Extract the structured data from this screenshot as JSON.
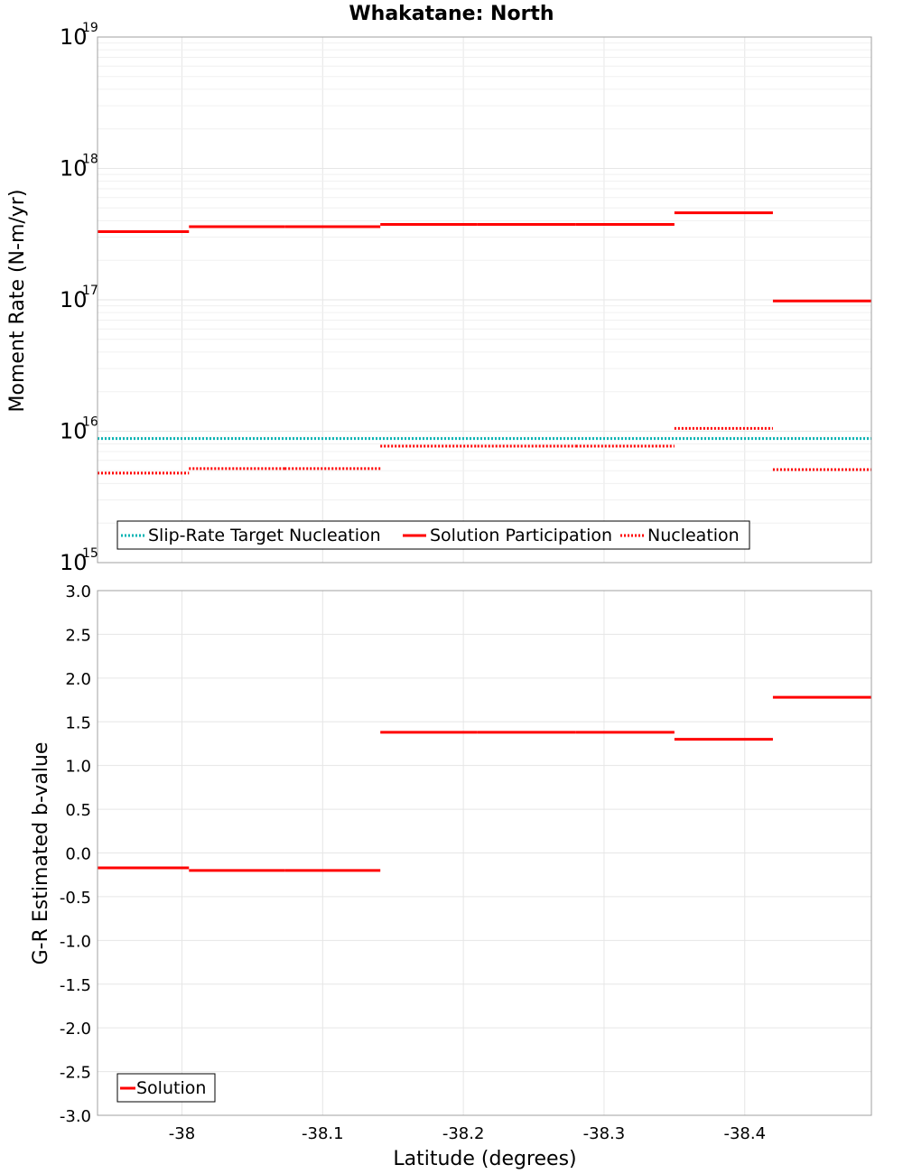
{
  "title": "Whakatane: North",
  "chart_data": [
    {
      "type": "line",
      "step": true,
      "yscale": "log",
      "ylabel": "Moment Rate (N-m/yr)",
      "xlim": [
        -37.94,
        -38.49
      ],
      "ylim": [
        1000000000000000.0,
        1e+19
      ],
      "ytick_base": "10",
      "ytick_exponents": [
        "15",
        "16",
        "17",
        "18",
        "19"
      ],
      "legend_position": "bottom-left",
      "series": [
        {
          "name": "Slip-Rate Target Nucleation",
          "style": "dotted",
          "color": "#00b3b3",
          "segments": [
            [
              -37.94,
              -38.49,
              8800000000000000.0
            ]
          ]
        },
        {
          "name": "Solution Participation",
          "style": "solid",
          "color": "#ff0000",
          "segments": [
            [
              -37.94,
              -38.005,
              3.3e+17
            ],
            [
              -38.005,
              -38.073,
              3.6e+17
            ],
            [
              -38.073,
              -38.141,
              3.6e+17
            ],
            [
              -38.141,
              -38.21,
              3.75e+17
            ],
            [
              -38.21,
              -38.28,
              3.75e+17
            ],
            [
              -38.28,
              -38.35,
              3.75e+17
            ],
            [
              -38.35,
              -38.42,
              4.6e+17
            ],
            [
              -38.42,
              -38.49,
              9.8e+16
            ]
          ]
        },
        {
          "name": "Nucleation",
          "style": "dotted",
          "color": "#ff0000",
          "segments": [
            [
              -37.94,
              -38.005,
              4800000000000000.0
            ],
            [
              -38.005,
              -38.073,
              5200000000000000.0
            ],
            [
              -38.073,
              -38.141,
              5200000000000000.0
            ],
            [
              -38.141,
              -38.21,
              7700000000000000.0
            ],
            [
              -38.21,
              -38.28,
              7700000000000000.0
            ],
            [
              -38.28,
              -38.35,
              7700000000000000.0
            ],
            [
              -38.35,
              -38.42,
              1.05e+16
            ],
            [
              -38.42,
              -38.49,
              5100000000000000.0
            ]
          ]
        }
      ]
    },
    {
      "type": "line",
      "step": true,
      "ylabel": "G-R Estimated b-value",
      "xlabel": "Latitude (degrees)",
      "xlim": [
        -37.94,
        -38.49
      ],
      "ylim": [
        -3.0,
        3.0
      ],
      "xticks": [
        -38,
        -38.1,
        -38.2,
        -38.3,
        -38.4
      ],
      "xtick_labels": [
        "-38",
        "-38.1",
        "-38.2",
        "-38.3",
        "-38.4"
      ],
      "yticks": [
        3.0,
        2.5,
        2.0,
        1.5,
        1.0,
        0.5,
        0.0,
        -0.5,
        -1.0,
        -1.5,
        -2.0,
        -2.5,
        -3.0
      ],
      "ytick_labels": [
        "3.0",
        "2.5",
        "2.0",
        "1.5",
        "1.0",
        "0.5",
        "0.0",
        "-0.5",
        "-1.0",
        "-1.5",
        "-2.0",
        "-2.5",
        "-3.0"
      ],
      "legend_position": "bottom-left",
      "series": [
        {
          "name": "Solution",
          "style": "solid",
          "color": "#ff0000",
          "segments": [
            [
              -37.94,
              -38.005,
              -0.17
            ],
            [
              -38.005,
              -38.073,
              -0.2
            ],
            [
              -38.073,
              -38.141,
              -0.2
            ],
            [
              -38.141,
              -38.21,
              1.38
            ],
            [
              -38.21,
              -38.28,
              1.38
            ],
            [
              -38.28,
              -38.35,
              1.38
            ],
            [
              -38.35,
              -38.42,
              1.3
            ],
            [
              -38.42,
              -38.49,
              1.78
            ]
          ]
        }
      ]
    }
  ]
}
